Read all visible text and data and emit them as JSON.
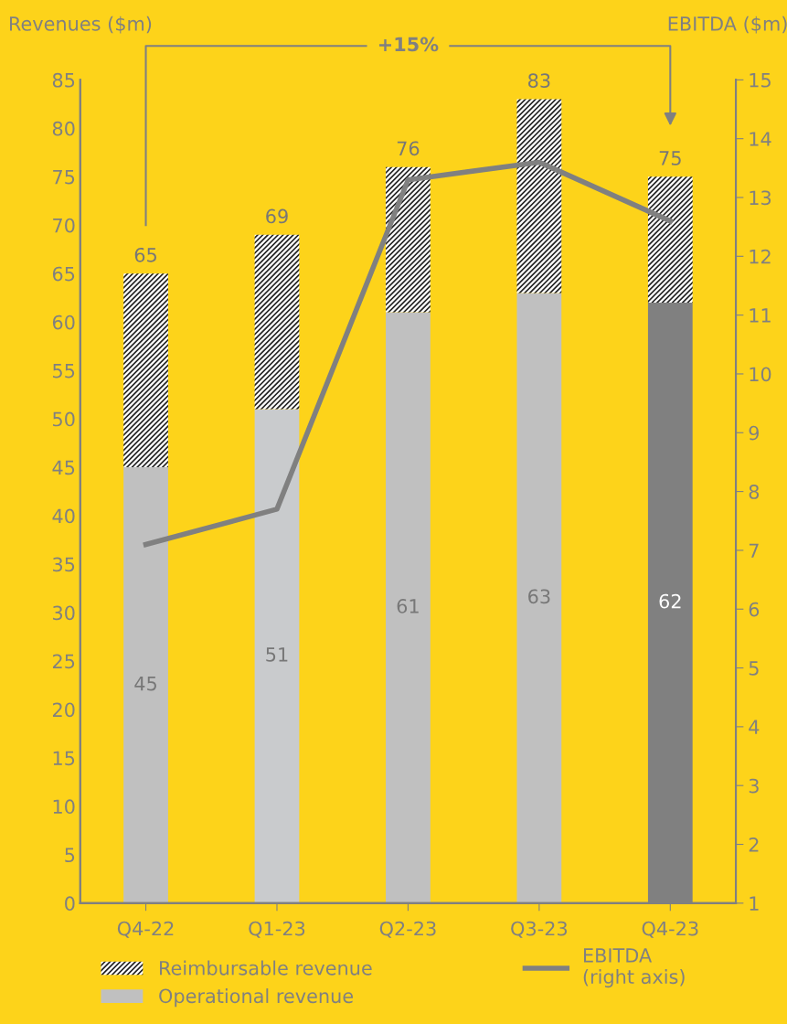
{
  "chart_data": {
    "type": "bar",
    "stacked": true,
    "ylabel": "Revenues ($m)",
    "y2label": "EBITDA ($m)",
    "categories": [
      "Q4-22",
      "Q1-23",
      "Q2-23",
      "Q3-23",
      "Q4-23"
    ],
    "series": [
      {
        "name": "Operational revenue",
        "color": "#c0c0c0",
        "colors": [
          "#c0c0c0",
          "#c9cbcd",
          "#c0c0c0",
          "#c0c0c0",
          "#808080"
        ],
        "values": [
          45,
          51,
          61,
          63,
          62
        ],
        "value_labels": [
          "45",
          "51",
          "61",
          "63",
          "62"
        ]
      },
      {
        "name": "Reimbursable revenue",
        "color": "#ffffff",
        "values": [
          20,
          18,
          15,
          20,
          13
        ]
      },
      {
        "name": "EBITDA\n(right axis)",
        "type": "line",
        "axis": "y2",
        "color": "#808080",
        "values": [
          7.1,
          7.7,
          13.3,
          13.6,
          12.6
        ]
      }
    ],
    "totals": [
      "65",
      "69",
      "76",
      "83",
      "75"
    ],
    "annotations": [
      "+15%"
    ],
    "ylim": [
      0,
      85
    ],
    "yticks": [
      0,
      5,
      10,
      15,
      20,
      25,
      30,
      35,
      40,
      45,
      50,
      55,
      60,
      65,
      70,
      75,
      80,
      85
    ],
    "y2lim": [
      1,
      15
    ],
    "y2ticks": [
      1,
      2,
      3,
      4,
      5,
      6,
      7,
      8,
      9,
      10,
      11,
      12,
      13,
      14,
      15
    ],
    "grid": false,
    "legend": "bottom",
    "marker": "none",
    "line_style": "solid"
  }
}
